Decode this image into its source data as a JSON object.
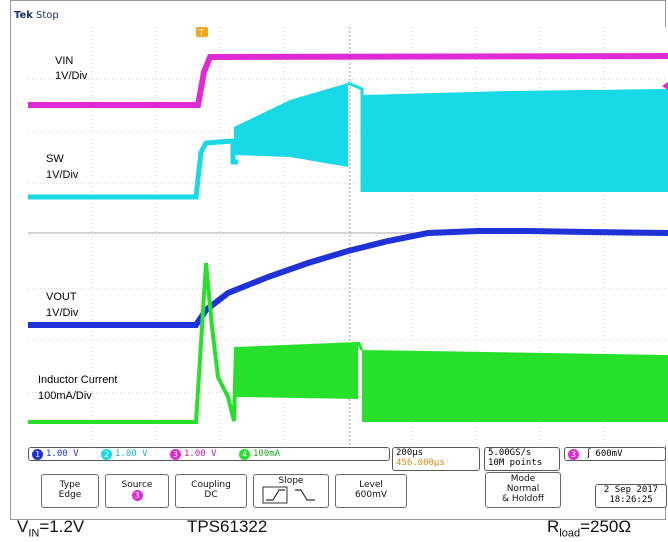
{
  "top_bar": {
    "brand": "Tek",
    "status": "Stop"
  },
  "channels": {
    "vin": {
      "name": "VIN",
      "scale": "1V/Div",
      "color": "#e02ad6"
    },
    "sw": {
      "name": "SW",
      "scale": "1V/Div",
      "color": "#19d9e6"
    },
    "vout": {
      "name": "VOUT",
      "scale": "1V/Div",
      "color": "#1f32d8"
    },
    "il": {
      "name": "Inductor Current",
      "scale": "100mA/Div",
      "color": "#26e02a"
    }
  },
  "channel_readouts": [
    {
      "ch": "1",
      "value": "1.00 V"
    },
    {
      "ch": "2",
      "value": "1.00 V"
    },
    {
      "ch": "3",
      "value": "1.00 V"
    },
    {
      "ch": "4",
      "value": "100mA"
    }
  ],
  "timebase": {
    "per_div": "200µs",
    "position": "456.000µs"
  },
  "acquisition": {
    "rate": "5.00GS/s",
    "points": "10M points"
  },
  "trigger_readout": {
    "ch": "3",
    "level": "600mV"
  },
  "softkeys": {
    "type": {
      "label": "Type",
      "value": "Edge"
    },
    "source": {
      "label": "Source",
      "value": "3"
    },
    "coupling": {
      "label": "Coupling",
      "value": "DC"
    },
    "slope": {
      "label": "Slope"
    },
    "level": {
      "label": "Level",
      "value": "600mV"
    },
    "mode": {
      "label": "Mode",
      "value1": "Normal",
      "value2": "& Holdoff"
    }
  },
  "datetime": {
    "date": "2 Sep 2017",
    "time": "18:26:25"
  },
  "captions": {
    "vin": "V",
    "vin_sub": "IN",
    "vin_val": "=1.2V",
    "device": "TPS61322",
    "rload": "R",
    "rload_sub": "load",
    "rload_val": "=250Ω"
  }
}
